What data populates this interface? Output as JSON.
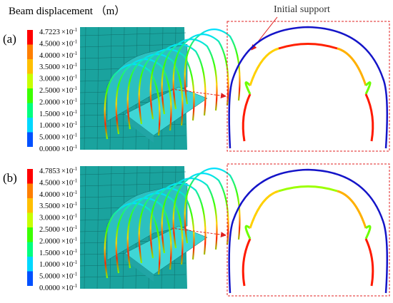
{
  "title": "Beam displacement （m）",
  "annotation": "Initial support",
  "multiplier": "×10",
  "panels": [
    {
      "label": "(a)",
      "legend": {
        "colors": [
          "#ff0000",
          "#ff7f00",
          "#ffbf00",
          "#c8ff00",
          "#3cff00",
          "#00ff7f",
          "#00d8ff",
          "#0050ff"
        ],
        "ticks": [
          {
            "mantissa": "4.7223",
            "exponent": "-1"
          },
          {
            "mantissa": "4.5000",
            "exponent": "-1"
          },
          {
            "mantissa": "4.0000",
            "exponent": "-1"
          },
          {
            "mantissa": "3.5000",
            "exponent": "-1"
          },
          {
            "mantissa": "3.0000",
            "exponent": "-1"
          },
          {
            "mantissa": "2.5000",
            "exponent": "-1"
          },
          {
            "mantissa": "2.0000",
            "exponent": "-1"
          },
          {
            "mantissa": "1.5000",
            "exponent": "-1"
          },
          {
            "mantissa": "1.0000",
            "exponent": "-1"
          },
          {
            "mantissa": "5.0000",
            "exponent": "-1"
          },
          {
            "mantissa": "0.0000",
            "exponent": "-1"
          }
        ]
      }
    },
    {
      "label": "(b)",
      "legend": {
        "colors": [
          "#ff0000",
          "#ff7f00",
          "#ffbf00",
          "#c8ff00",
          "#3cff00",
          "#00ff7f",
          "#00d8ff",
          "#0050ff"
        ],
        "ticks": [
          {
            "mantissa": "4.7853",
            "exponent": "-1"
          },
          {
            "mantissa": "4.5000",
            "exponent": "-1"
          },
          {
            "mantissa": "4.0000",
            "exponent": "-1"
          },
          {
            "mantissa": "3.5000",
            "exponent": "-1"
          },
          {
            "mantissa": "3.0000",
            "exponent": "-1"
          },
          {
            "mantissa": "2.5000",
            "exponent": "-1"
          },
          {
            "mantissa": "2.0000",
            "exponent": "-1"
          },
          {
            "mantissa": "1.5000",
            "exponent": "-1"
          },
          {
            "mantissa": "1.0000",
            "exponent": "-1"
          },
          {
            "mantissa": "5.0000",
            "exponent": "-1"
          },
          {
            "mantissa": "0.0000",
            "exponent": "-1"
          }
        ]
      }
    }
  ]
}
